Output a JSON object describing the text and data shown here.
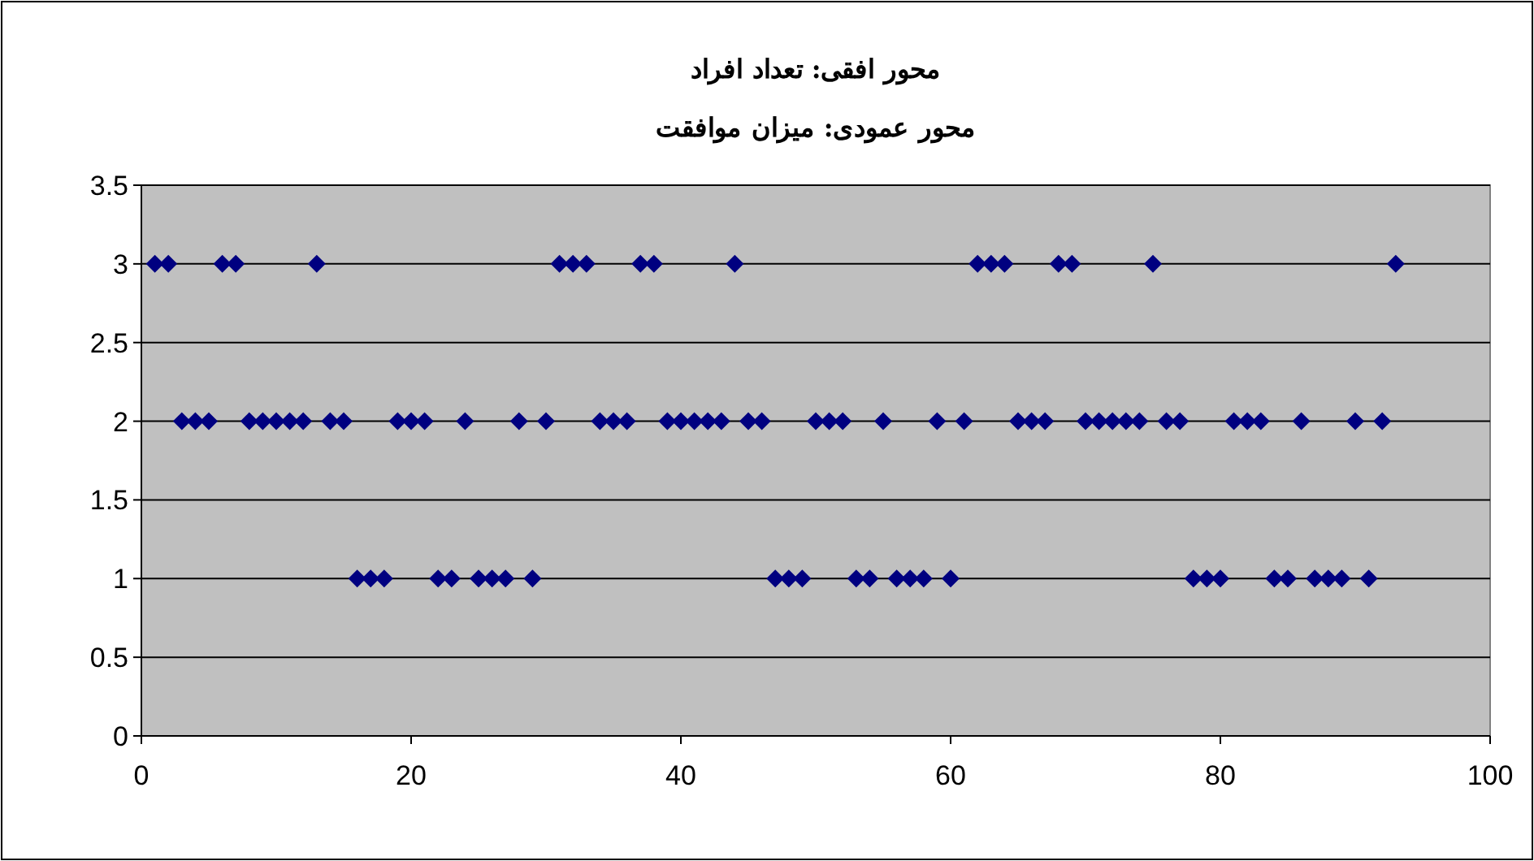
{
  "chart_data": {
    "type": "scatter",
    "title": "محور افقی: تعداد افراد",
    "subtitle": "محور عمودی: میزان موافقت",
    "x": [
      1,
      2,
      3,
      4,
      5,
      6,
      7,
      8,
      9,
      10,
      11,
      12,
      13,
      14,
      15,
      16,
      17,
      18,
      19,
      20,
      21,
      22,
      23,
      24,
      25,
      26,
      27,
      28,
      29,
      30,
      31,
      32,
      33,
      34,
      35,
      36,
      37,
      38,
      39,
      40,
      41,
      42,
      43,
      44,
      45,
      46,
      47,
      48,
      49,
      50,
      51,
      52,
      53,
      54,
      55,
      56,
      57,
      58,
      59,
      60,
      61,
      62,
      63,
      64,
      65,
      66,
      67,
      68,
      69,
      70,
      71,
      72,
      73,
      74,
      75,
      76,
      77,
      78,
      79,
      80,
      81,
      82,
      83,
      84,
      85,
      86,
      87,
      88,
      89,
      90,
      91,
      92,
      93
    ],
    "series": [
      {
        "color": "#000080",
        "values": [
          3,
          3,
          2,
          2,
          2,
          3,
          3,
          2,
          2,
          2,
          2,
          2,
          3,
          2,
          2,
          1,
          1,
          1,
          2,
          2,
          2,
          1,
          1,
          2,
          1,
          1,
          1,
          2,
          1,
          2,
          3,
          3,
          3,
          2,
          2,
          2,
          3,
          3,
          2,
          2,
          2,
          2,
          2,
          3,
          2,
          2,
          1,
          1,
          1,
          2,
          2,
          2,
          1,
          1,
          2,
          1,
          1,
          1,
          2,
          1,
          2,
          3,
          3,
          3,
          2,
          2,
          2,
          3,
          3,
          2,
          2,
          2,
          2,
          2,
          3,
          2,
          2,
          1,
          1,
          1,
          2,
          2,
          2,
          1,
          1,
          2,
          1,
          1,
          1,
          2,
          1,
          2,
          3
        ]
      }
    ],
    "xlim": [
      0,
      100
    ],
    "xticks": [
      0,
      20,
      40,
      60,
      80,
      100
    ],
    "ylim": [
      0,
      3.5
    ],
    "yticks": [
      0,
      0.5,
      1,
      1.5,
      2,
      2.5,
      3,
      3.5
    ],
    "grid": "y",
    "marker": "diamond"
  }
}
